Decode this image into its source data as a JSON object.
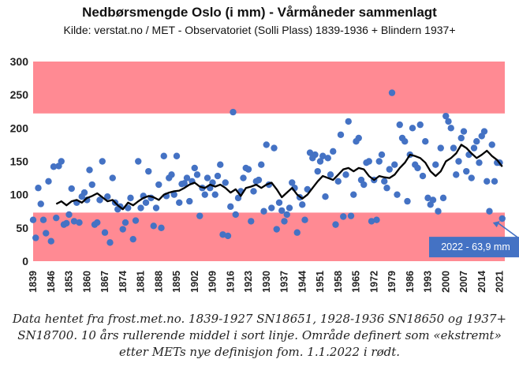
{
  "header": {
    "title": "Nedbørsmengde Oslo (i mm) - Vårmåneder sammenlagt",
    "subtitle": "Kilde: verstat.no / MET - Observatoriet (Solli Plass) 1839-1936 + Blindern 1937+"
  },
  "caption": {
    "line1": "Data hentet fra frost.met.no. 1839-1927 SN18651, 1928-1936 SN18650 og 1937+",
    "line2": "SN18700. 10 års rullerende middel i sort linje. Område definert som «ekstremt»",
    "line3": "etter METs nye definisjon fom. 1.1.2022 i rødt."
  },
  "colors": {
    "band": "#ff8a93",
    "point": "#4472c4",
    "line": "#000000",
    "annotation_box": "#4472c4",
    "annotation_text": "#ffffff"
  },
  "chart_data": {
    "type": "scatter",
    "xlim": [
      1839,
      2023
    ],
    "ylim": [
      0,
      300
    ],
    "grid": false,
    "y_ticks": [
      0,
      50,
      100,
      150,
      200,
      250,
      300
    ],
    "x_ticks": [
      1839,
      1846,
      1853,
      1860,
      1867,
      1874,
      1881,
      1888,
      1895,
      1902,
      1909,
      1916,
      1923,
      1930,
      1937,
      1944,
      1951,
      1958,
      1965,
      1972,
      1979,
      1986,
      1993,
      2000,
      2007,
      2014,
      2021
    ],
    "extreme_bands": [
      {
        "from": 0,
        "to": 73
      },
      {
        "from": 222,
        "to": 300
      }
    ],
    "annotation": {
      "text": "2022 - 63,9 mm",
      "x": 2022,
      "y": 63.9
    },
    "series": [
      {
        "type": "scatter",
        "points": [
          [
            1839,
            62
          ],
          [
            1840,
            35
          ],
          [
            1841,
            110
          ],
          [
            1842,
            86
          ],
          [
            1843,
            62
          ],
          [
            1844,
            42
          ],
          [
            1845,
            120
          ],
          [
            1846,
            30
          ],
          [
            1847,
            142
          ],
          [
            1848,
            65
          ],
          [
            1849,
            143
          ],
          [
            1850,
            150
          ],
          [
            1851,
            55
          ],
          [
            1852,
            57
          ],
          [
            1853,
            70
          ],
          [
            1854,
            109
          ],
          [
            1855,
            60
          ],
          [
            1856,
            88
          ],
          [
            1857,
            58
          ],
          [
            1858,
            97
          ],
          [
            1859,
            103
          ],
          [
            1860,
            92
          ],
          [
            1861,
            137
          ],
          [
            1862,
            115
          ],
          [
            1863,
            55
          ],
          [
            1864,
            58
          ],
          [
            1865,
            92
          ],
          [
            1866,
            150
          ],
          [
            1867,
            43
          ],
          [
            1868,
            97
          ],
          [
            1869,
            28
          ],
          [
            1870,
            125
          ],
          [
            1871,
            88
          ],
          [
            1872,
            78
          ],
          [
            1873,
            82
          ],
          [
            1874,
            48
          ],
          [
            1875,
            58
          ],
          [
            1876,
            80
          ],
          [
            1877,
            95
          ],
          [
            1878,
            33
          ],
          [
            1879,
            61
          ],
          [
            1880,
            150
          ],
          [
            1881,
            80
          ],
          [
            1882,
            98
          ],
          [
            1883,
            88
          ],
          [
            1884,
            135
          ],
          [
            1885,
            95
          ],
          [
            1886,
            53
          ],
          [
            1887,
            80
          ],
          [
            1888,
            115
          ],
          [
            1889,
            50
          ],
          [
            1890,
            158
          ],
          [
            1891,
            98
          ],
          [
            1892,
            125
          ],
          [
            1893,
            130
          ],
          [
            1894,
            100
          ],
          [
            1895,
            158
          ],
          [
            1896,
            88
          ],
          [
            1897,
            116
          ],
          [
            1898,
            117
          ],
          [
            1899,
            125
          ],
          [
            1900,
            90
          ],
          [
            1901,
            120
          ],
          [
            1902,
            140
          ],
          [
            1903,
            130
          ],
          [
            1904,
            68
          ],
          [
            1905,
            110
          ],
          [
            1906,
            100
          ],
          [
            1907,
            125
          ],
          [
            1908,
            110
          ],
          [
            1909,
            118
          ],
          [
            1910,
            100
          ],
          [
            1911,
            128
          ],
          [
            1912,
            145
          ],
          [
            1913,
            40
          ],
          [
            1914,
            118
          ],
          [
            1915,
            38
          ],
          [
            1916,
            82
          ],
          [
            1917,
            224
          ],
          [
            1918,
            70
          ],
          [
            1919,
            95
          ],
          [
            1920,
            105
          ],
          [
            1921,
            125
          ],
          [
            1922,
            140
          ],
          [
            1923,
            138
          ],
          [
            1924,
            60
          ],
          [
            1925,
            105
          ],
          [
            1926,
            120
          ],
          [
            1927,
            122
          ],
          [
            1928,
            145
          ],
          [
            1929,
            75
          ],
          [
            1930,
            175
          ],
          [
            1931,
            115
          ],
          [
            1932,
            80
          ],
          [
            1933,
            170
          ],
          [
            1934,
            48
          ],
          [
            1935,
            88
          ],
          [
            1936,
            76
          ],
          [
            1937,
            60
          ],
          [
            1938,
            70
          ],
          [
            1939,
            80
          ],
          [
            1940,
            118
          ],
          [
            1941,
            110
          ],
          [
            1942,
            43
          ],
          [
            1943,
            96
          ],
          [
            1944,
            85
          ],
          [
            1945,
            62
          ],
          [
            1946,
            108
          ],
          [
            1947,
            163
          ],
          [
            1948,
            155
          ],
          [
            1949,
            160
          ],
          [
            1950,
            135
          ],
          [
            1951,
            150
          ],
          [
            1952,
            158
          ],
          [
            1953,
            97
          ],
          [
            1954,
            155
          ],
          [
            1955,
            130
          ],
          [
            1956,
            165
          ],
          [
            1957,
            55
          ],
          [
            1958,
            120
          ],
          [
            1959,
            190
          ],
          [
            1960,
            67
          ],
          [
            1961,
            130
          ],
          [
            1962,
            210
          ],
          [
            1963,
            68
          ],
          [
            1964,
            100
          ],
          [
            1965,
            180
          ],
          [
            1966,
            185
          ],
          [
            1967,
            122
          ],
          [
            1968,
            115
          ],
          [
            1969,
            148
          ],
          [
            1970,
            150
          ],
          [
            1971,
            60
          ],
          [
            1972,
            122
          ],
          [
            1973,
            62
          ],
          [
            1974,
            150
          ],
          [
            1975,
            160
          ],
          [
            1976,
            120
          ],
          [
            1977,
            110
          ],
          [
            1978,
            138
          ],
          [
            1979,
            253
          ],
          [
            1980,
            145
          ],
          [
            1981,
            100
          ],
          [
            1982,
            205
          ],
          [
            1983,
            185
          ],
          [
            1984,
            180
          ],
          [
            1985,
            90
          ],
          [
            1986,
            160
          ],
          [
            1987,
            200
          ],
          [
            1988,
            145
          ],
          [
            1989,
            140
          ],
          [
            1990,
            205
          ],
          [
            1991,
            128
          ],
          [
            1992,
            180
          ],
          [
            1993,
            95
          ],
          [
            1994,
            85
          ],
          [
            1995,
            92
          ],
          [
            1996,
            145
          ],
          [
            1997,
            75
          ],
          [
            1998,
            170
          ],
          [
            1999,
            95
          ],
          [
            2000,
            218
          ],
          [
            2001,
            210
          ],
          [
            2002,
            200
          ],
          [
            2003,
            170
          ],
          [
            2004,
            130
          ],
          [
            2005,
            150
          ],
          [
            2006,
            185
          ],
          [
            2007,
            195
          ],
          [
            2008,
            135
          ],
          [
            2009,
            160
          ],
          [
            2010,
            125
          ],
          [
            2011,
            170
          ],
          [
            2012,
            180
          ],
          [
            2013,
            148
          ],
          [
            2014,
            188
          ],
          [
            2015,
            195
          ],
          [
            2016,
            120
          ],
          [
            2017,
            75
          ],
          [
            2018,
            175
          ],
          [
            2019,
            120
          ],
          [
            2020,
            148
          ],
          [
            2021,
            148
          ],
          [
            2022,
            64
          ]
        ]
      },
      {
        "type": "line",
        "points": [
          [
            1848,
            86
          ],
          [
            1850,
            90
          ],
          [
            1852,
            84
          ],
          [
            1854,
            90
          ],
          [
            1856,
            92
          ],
          [
            1858,
            88
          ],
          [
            1860,
            95
          ],
          [
            1862,
            98
          ],
          [
            1864,
            102
          ],
          [
            1866,
            96
          ],
          [
            1868,
            90
          ],
          [
            1870,
            92
          ],
          [
            1872,
            84
          ],
          [
            1874,
            78
          ],
          [
            1876,
            88
          ],
          [
            1878,
            84
          ],
          [
            1880,
            90
          ],
          [
            1882,
            95
          ],
          [
            1884,
            98
          ],
          [
            1886,
            96
          ],
          [
            1888,
            92
          ],
          [
            1890,
            100
          ],
          [
            1892,
            103
          ],
          [
            1894,
            105
          ],
          [
            1896,
            106
          ],
          [
            1898,
            110
          ],
          [
            1900,
            115
          ],
          [
            1902,
            118
          ],
          [
            1904,
            112
          ],
          [
            1906,
            110
          ],
          [
            1908,
            115
          ],
          [
            1910,
            112
          ],
          [
            1912,
            115
          ],
          [
            1914,
            110
          ],
          [
            1916,
            103
          ],
          [
            1918,
            108
          ],
          [
            1920,
            98
          ],
          [
            1922,
            110
          ],
          [
            1924,
            112
          ],
          [
            1926,
            115
          ],
          [
            1928,
            110
          ],
          [
            1930,
            115
          ],
          [
            1932,
            118
          ],
          [
            1934,
            108
          ],
          [
            1936,
            96
          ],
          [
            1938,
            103
          ],
          [
            1940,
            110
          ],
          [
            1942,
            100
          ],
          [
            1944,
            94
          ],
          [
            1946,
            100
          ],
          [
            1948,
            110
          ],
          [
            1950,
            120
          ],
          [
            1952,
            128
          ],
          [
            1954,
            125
          ],
          [
            1956,
            122
          ],
          [
            1958,
            130
          ],
          [
            1960,
            138
          ],
          [
            1962,
            140
          ],
          [
            1964,
            135
          ],
          [
            1966,
            140
          ],
          [
            1968,
            138
          ],
          [
            1970,
            128
          ],
          [
            1972,
            122
          ],
          [
            1974,
            128
          ],
          [
            1976,
            126
          ],
          [
            1978,
            125
          ],
          [
            1980,
            130
          ],
          [
            1982,
            140
          ],
          [
            1984,
            148
          ],
          [
            1986,
            160
          ],
          [
            1988,
            158
          ],
          [
            1990,
            155
          ],
          [
            1992,
            148
          ],
          [
            1994,
            135
          ],
          [
            1996,
            128
          ],
          [
            1998,
            135
          ],
          [
            2000,
            150
          ],
          [
            2002,
            155
          ],
          [
            2004,
            162
          ],
          [
            2006,
            175
          ],
          [
            2008,
            170
          ],
          [
            2010,
            162
          ],
          [
            2012,
            155
          ],
          [
            2014,
            160
          ],
          [
            2016,
            166
          ],
          [
            2018,
            158
          ],
          [
            2020,
            152
          ],
          [
            2022,
            142
          ]
        ]
      }
    ]
  }
}
